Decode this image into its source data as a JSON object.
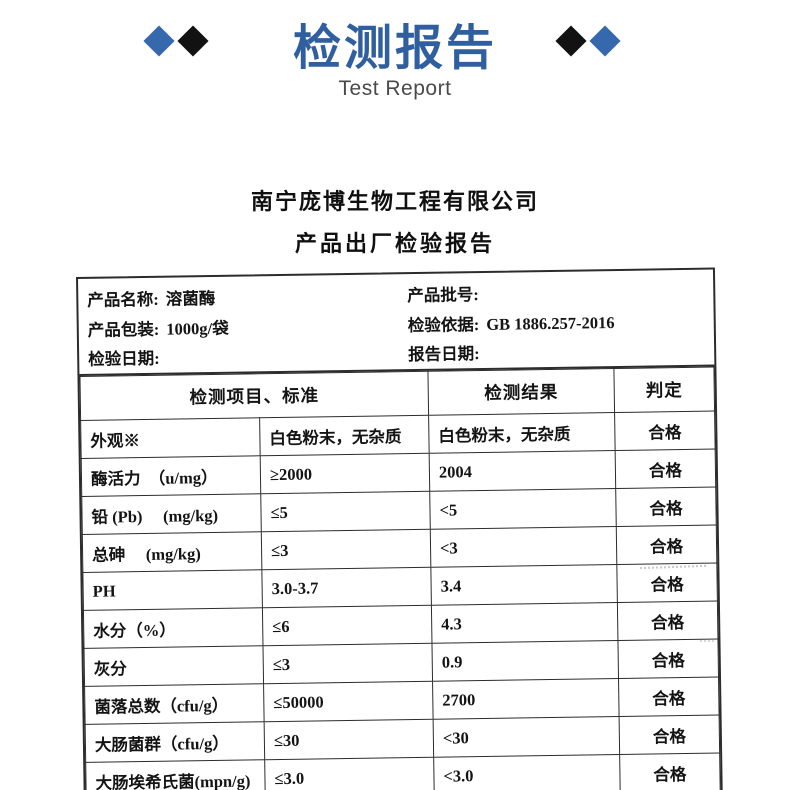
{
  "banner": {
    "title": "检测报告",
    "subtitle": "Test Report",
    "decor": {
      "left_icons": [
        "diamond-blue",
        "diamond-black"
      ],
      "right_icons": [
        "diamond-black",
        "diamond-blue"
      ],
      "diamond_blue": "#3668ae",
      "diamond_black": "#121212",
      "title_color": "#305f9f"
    }
  },
  "document": {
    "company_name": "南宁庞博生物工程有限公司",
    "report_title": "产品出厂检验报告",
    "info": {
      "left": [
        {
          "label": "产品名称:",
          "value": "溶菌酶"
        },
        {
          "label": "产品包装:",
          "value": "1000g/袋"
        },
        {
          "label": "检验日期:",
          "value": ""
        }
      ],
      "right": [
        {
          "label": "产品批号:",
          "value": ""
        },
        {
          "label": "检验依据:",
          "value": "GB 1886.257-2016"
        },
        {
          "label": "报告日期:",
          "value": ""
        }
      ]
    },
    "table": {
      "headers": [
        "检测项目、标准",
        "检测结果",
        "判定"
      ],
      "rows": [
        {
          "item": "外观※",
          "standard": "白色粉末，无杂质",
          "result": "白色粉末，无杂质",
          "verdict": "合格"
        },
        {
          "item": "酶活力　（u/mg）",
          "standard": "≥2000",
          "result": "2004",
          "verdict": "合格"
        },
        {
          "item": "铅 (Pb)　 (mg/kg)",
          "standard": "≤5",
          "result": "<5",
          "verdict": "合格"
        },
        {
          "item": "总砷　 (mg/kg)",
          "standard": "≤3",
          "result": "<3",
          "verdict": "合格"
        },
        {
          "item": "PH",
          "standard": "3.0-3.7",
          "result": "3.4",
          "verdict": "合格"
        },
        {
          "item": "水分（%）",
          "standard": "≤6",
          "result": "4.3",
          "verdict": "合格"
        },
        {
          "item": "灰分",
          "standard": "≤3",
          "result": "0.9",
          "verdict": "合格"
        },
        {
          "item": "菌落总数（cfu/g）",
          "standard": "≤50000",
          "result": "2700",
          "verdict": "合格"
        },
        {
          "item": "大肠菌群（cfu/g）",
          "standard": "≤30",
          "result": "<30",
          "verdict": "合格"
        },
        {
          "item": "大肠埃希氏菌(mpn/g)",
          "standard": "≤3.0",
          "result": "<3.0",
          "verdict": "合格"
        }
      ]
    }
  }
}
